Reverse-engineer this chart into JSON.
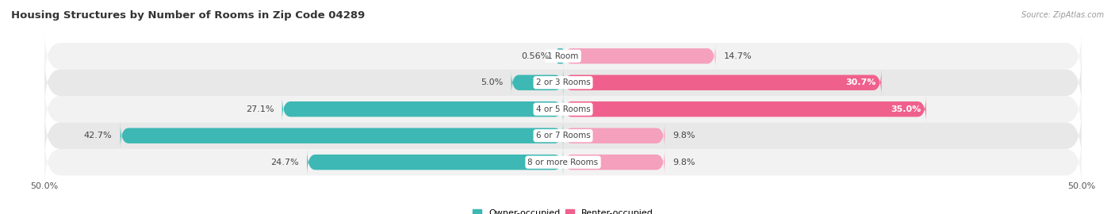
{
  "title": "Housing Structures by Number of Rooms in Zip Code 04289",
  "source": "Source: ZipAtlas.com",
  "categories": [
    "1 Room",
    "2 or 3 Rooms",
    "4 or 5 Rooms",
    "6 or 7 Rooms",
    "8 or more Rooms"
  ],
  "owner_values": [
    0.56,
    5.0,
    27.1,
    42.7,
    24.7
  ],
  "renter_values": [
    14.7,
    30.7,
    35.0,
    9.8,
    9.8
  ],
  "owner_color": "#3db8b4",
  "renter_colors": [
    "#f5a0bc",
    "#f0608c",
    "#f0608c",
    "#f5a0bc",
    "#f5a0bc"
  ],
  "row_bg_odd": "#f2f2f2",
  "row_bg_even": "#e8e8e8",
  "axis_min": -50.0,
  "axis_max": 50.0,
  "bar_height": 0.58,
  "title_fontsize": 9.5,
  "label_fontsize": 8,
  "tick_fontsize": 8,
  "background_color": "#ffffff"
}
